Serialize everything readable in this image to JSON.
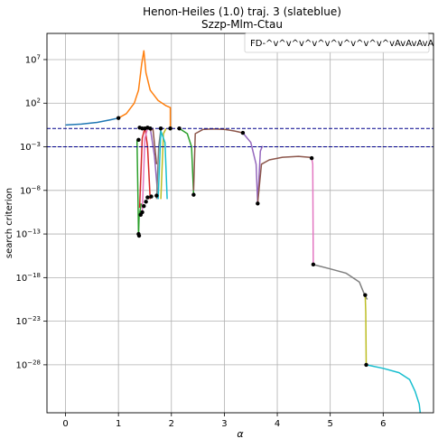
{
  "chart_data": {
    "type": "line",
    "title": "Henon-Heiles (1.0) traj. 3 (slateblue)",
    "subtitle": "Szzp-Mlm-Ctau",
    "xlabel": "α",
    "ylabel": "search criterion",
    "xlim": [
      -0.35,
      6.95
    ],
    "ylim_log10": [
      -33.5,
      10
    ],
    "yscale": "log",
    "x_ticks": [
      {
        "v": 0,
        "label": "0"
      },
      {
        "v": 1,
        "label": "1"
      },
      {
        "v": 2,
        "label": "2"
      },
      {
        "v": 3,
        "label": "3"
      },
      {
        "v": 4,
        "label": "4"
      },
      {
        "v": 5,
        "label": "5"
      },
      {
        "v": 6,
        "label": "6"
      }
    ],
    "y_ticks": [
      {
        "v": 7,
        "base": "10",
        "exp": "7"
      },
      {
        "v": 2,
        "base": "10",
        "exp": "2"
      },
      {
        "v": -3,
        "base": "10",
        "exp": "−3"
      },
      {
        "v": -8,
        "base": "10",
        "exp": "−8"
      },
      {
        "v": -13,
        "base": "10",
        "exp": "−13"
      },
      {
        "v": -18,
        "base": "10",
        "exp": "−18"
      },
      {
        "v": -23,
        "base": "10",
        "exp": "−23"
      },
      {
        "v": -28,
        "base": "10",
        "exp": "−28"
      }
    ],
    "grid": true,
    "legend": {
      "text": "FD-^v^v^v^v^v^v^v^v^v^vAvAvAvA",
      "placement": "upper-right"
    },
    "thresholds": [
      {
        "y_log10": -0.9,
        "color": "#00008b",
        "style": "dashed"
      },
      {
        "y_log10": -3.0,
        "color": "#00008b",
        "style": "dashed"
      }
    ],
    "series": [
      {
        "color": "#1f77b4",
        "points": [
          [
            0,
            -0.5
          ],
          [
            0.3,
            -0.4
          ],
          [
            0.6,
            -0.2
          ],
          [
            0.85,
            0.1
          ],
          [
            1.0,
            0.3
          ]
        ]
      },
      {
        "color": "#ff7f0e",
        "points": [
          [
            1.0,
            0.3
          ],
          [
            1.15,
            0.8
          ],
          [
            1.3,
            2.0
          ],
          [
            1.38,
            3.5
          ],
          [
            1.44,
            6.5
          ],
          [
            1.48,
            8.0
          ],
          [
            1.52,
            5.5
          ],
          [
            1.6,
            3.5
          ],
          [
            1.75,
            2.3
          ],
          [
            1.9,
            1.7
          ],
          [
            1.98,
            1.5
          ],
          [
            1.98,
            -0.9
          ]
        ]
      },
      {
        "color": "#2ca02c",
        "points": [
          [
            1.35,
            -2.2
          ],
          [
            1.37,
            -9.0
          ],
          [
            1.38,
            -13.2
          ],
          [
            1.39,
            -11.0
          ],
          [
            1.43,
            -9.5
          ]
        ]
      },
      {
        "color": "#d62728",
        "points": [
          [
            1.4,
            -10.0
          ],
          [
            1.45,
            -2.0
          ],
          [
            1.5,
            -0.8
          ],
          [
            1.55,
            -3.0
          ],
          [
            1.6,
            -9.0
          ]
        ]
      },
      {
        "color": "#9467bd",
        "points": [
          [
            1.55,
            -1.0
          ],
          [
            1.6,
            -0.8
          ],
          [
            1.68,
            -4.0
          ],
          [
            1.75,
            -9.0
          ]
        ]
      },
      {
        "color": "#8c564b",
        "points": [
          [
            1.6,
            -1.2
          ],
          [
            1.65,
            -0.9
          ],
          [
            1.72,
            -5.0
          ]
        ]
      },
      {
        "color": "#e377c2",
        "points": [
          [
            1.45,
            -10.5
          ],
          [
            1.5,
            -2.0
          ],
          [
            1.55,
            -0.9
          ]
        ]
      },
      {
        "color": "#7f7f7f",
        "points": [
          [
            1.72,
            -9.0
          ],
          [
            1.76,
            -3.0
          ],
          [
            1.8,
            -1.0
          ]
        ]
      },
      {
        "color": "#bcbd22",
        "points": [
          [
            1.8,
            -9.0
          ],
          [
            1.85,
            -1.5
          ],
          [
            1.9,
            -0.9
          ]
        ]
      },
      {
        "color": "#17becf",
        "points": [
          [
            1.75,
            -9.0
          ],
          [
            1.8,
            -1.2
          ],
          [
            1.88,
            -2.5
          ],
          [
            1.92,
            -9.0
          ]
        ]
      },
      {
        "color": "#2ca02c",
        "points": [
          [
            2.15,
            -0.9
          ],
          [
            2.3,
            -1.5
          ],
          [
            2.38,
            -3.0
          ],
          [
            2.42,
            -8.5
          ]
        ]
      },
      {
        "color": "#8c564b",
        "points": [
          [
            2.42,
            -8.0
          ],
          [
            2.45,
            -1.5
          ],
          [
            2.6,
            -1.0
          ],
          [
            2.8,
            -0.95
          ],
          [
            3.0,
            -1.0
          ],
          [
            3.2,
            -1.2
          ],
          [
            3.35,
            -1.4
          ]
        ]
      },
      {
        "color": "#9467bd",
        "points": [
          [
            3.35,
            -1.4
          ],
          [
            3.5,
            -2.5
          ],
          [
            3.6,
            -5.0
          ],
          [
            3.63,
            -9.5
          ],
          [
            3.68,
            -3.5
          ],
          [
            3.72,
            -2.9
          ]
        ]
      },
      {
        "color": "#8c564b",
        "points": [
          [
            3.63,
            -9.5
          ],
          [
            3.7,
            -5.0
          ],
          [
            3.85,
            -4.5
          ],
          [
            4.1,
            -4.2
          ],
          [
            4.4,
            -4.1
          ],
          [
            4.6,
            -4.2
          ],
          [
            4.65,
            -4.3
          ]
        ]
      },
      {
        "color": "#e377c2",
        "points": [
          [
            4.65,
            -4.3
          ],
          [
            4.67,
            -5.0
          ],
          [
            4.68,
            -16.5
          ]
        ]
      },
      {
        "color": "#7f7f7f",
        "points": [
          [
            4.68,
            -16.5
          ],
          [
            5.0,
            -17.0
          ],
          [
            5.3,
            -17.5
          ],
          [
            5.55,
            -18.5
          ],
          [
            5.65,
            -20.0
          ],
          [
            5.7,
            -20.5
          ]
        ]
      },
      {
        "color": "#bcbd22",
        "points": [
          [
            5.66,
            -20.0
          ],
          [
            5.67,
            -22.0
          ],
          [
            5.68,
            -28.0
          ]
        ]
      },
      {
        "color": "#17becf",
        "points": [
          [
            5.68,
            -28.0
          ],
          [
            6.0,
            -28.4
          ],
          [
            6.3,
            -28.9
          ],
          [
            6.5,
            -29.7
          ],
          [
            6.6,
            -31.0
          ],
          [
            6.68,
            -32.5
          ],
          [
            6.7,
            -33.5
          ]
        ]
      }
    ],
    "markers": [
      [
        1.0,
        0.3
      ],
      [
        1.38,
        -2.2
      ],
      [
        1.39,
        -13.2
      ],
      [
        1.38,
        -13.0
      ],
      [
        1.42,
        -10.8
      ],
      [
        1.45,
        -10.5
      ],
      [
        1.48,
        -9.8
      ],
      [
        1.52,
        -9.3
      ],
      [
        1.55,
        -8.8
      ],
      [
        1.62,
        -8.7
      ],
      [
        1.72,
        -8.6
      ],
      [
        1.4,
        -0.8
      ],
      [
        1.45,
        -0.9
      ],
      [
        1.5,
        -0.9
      ],
      [
        1.55,
        -0.8
      ],
      [
        1.6,
        -0.9
      ],
      [
        1.8,
        -0.9
      ],
      [
        1.98,
        -0.9
      ],
      [
        2.15,
        -0.9
      ],
      [
        2.42,
        -8.5
      ],
      [
        3.35,
        -1.4
      ],
      [
        3.63,
        -9.5
      ],
      [
        4.65,
        -4.3
      ],
      [
        4.68,
        -16.5
      ],
      [
        5.66,
        -20.0
      ],
      [
        5.68,
        -28.0
      ]
    ]
  }
}
